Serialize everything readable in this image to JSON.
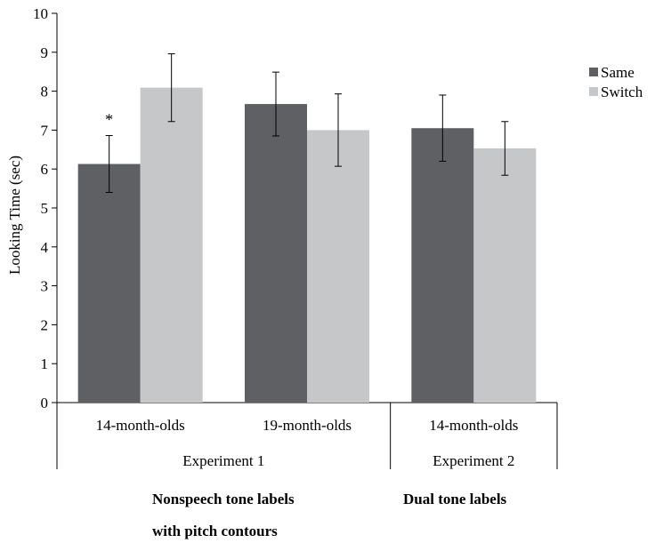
{
  "chart_data": {
    "type": "bar",
    "ylabel": "Looking Time (sec)",
    "ylim": [
      0,
      10
    ],
    "yticks": [
      0,
      1,
      2,
      3,
      4,
      5,
      6,
      7,
      8,
      9,
      10
    ],
    "categories": [
      "14-month-olds",
      "19-month-olds",
      "14-month-olds"
    ],
    "groups": [
      {
        "label": "Experiment 1",
        "categories": [
          0,
          1
        ]
      },
      {
        "label": "Experiment 2",
        "categories": [
          2
        ]
      }
    ],
    "series": [
      {
        "name": "Same",
        "color": "#5f6064",
        "values": [
          6.13,
          7.67,
          7.05
        ],
        "error": [
          0.73,
          0.82,
          0.85
        ]
      },
      {
        "name": "Switch",
        "color": "#c6c7c9",
        "values": [
          8.09,
          7.0,
          6.53
        ],
        "error": [
          0.87,
          0.93,
          0.69
        ]
      }
    ],
    "annotations": [
      {
        "text": "*",
        "category": 0,
        "series": 0
      }
    ],
    "legend_position": "right",
    "grid": false
  },
  "condition_labels": [
    {
      "line1": "Nonspeech tone labels",
      "line2": "with pitch contours"
    },
    {
      "line1": "Dual tone labels",
      "line2": ""
    }
  ]
}
